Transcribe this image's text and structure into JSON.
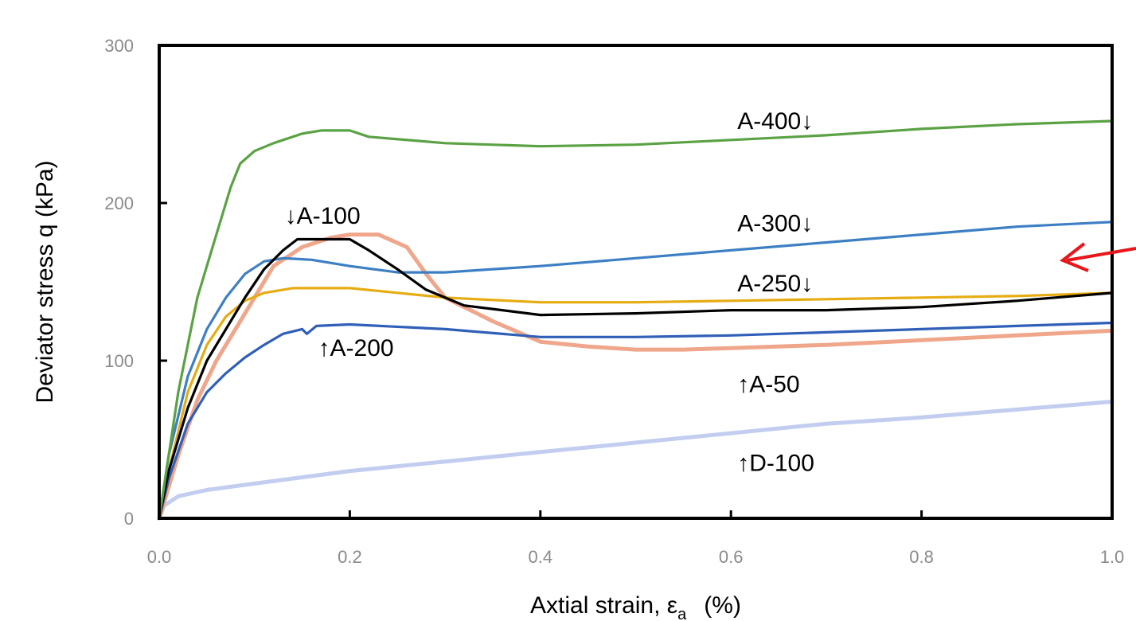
{
  "chart_data": {
    "type": "line",
    "title": "",
    "xlabel": "Axtial strain, ε",
    "xlabel_subscript": "a",
    "xlabel_unit": "(%)",
    "ylabel": "Deviator stress q (kPa)",
    "xlim": [
      0.0,
      1.0
    ],
    "ylim": [
      0,
      300
    ],
    "x_ticks": [
      "0.0",
      "0.2",
      "0.4",
      "0.6",
      "0.8",
      "1.0"
    ],
    "y_ticks": [
      "0",
      "100",
      "200",
      "300"
    ],
    "grid": false,
    "legend": "none",
    "series": [
      {
        "label": "A-400↓",
        "color": "#5aa244",
        "points": [
          [
            0,
            0
          ],
          [
            0.005,
            20
          ],
          [
            0.02,
            80
          ],
          [
            0.04,
            140
          ],
          [
            0.06,
            180
          ],
          [
            0.075,
            210
          ],
          [
            0.085,
            225
          ],
          [
            0.1,
            233
          ],
          [
            0.12,
            238
          ],
          [
            0.15,
            244
          ],
          [
            0.17,
            246
          ],
          [
            0.2,
            246
          ],
          [
            0.22,
            242
          ],
          [
            0.3,
            238
          ],
          [
            0.4,
            236
          ],
          [
            0.5,
            237
          ],
          [
            0.6,
            240
          ],
          [
            0.7,
            243
          ],
          [
            0.8,
            247
          ],
          [
            0.9,
            250
          ],
          [
            1.0,
            252
          ]
        ]
      },
      {
        "label": "↓A-100",
        "color": "#000000",
        "points": [
          [
            0,
            0
          ],
          [
            0.01,
            30
          ],
          [
            0.03,
            70
          ],
          [
            0.05,
            100
          ],
          [
            0.07,
            120
          ],
          [
            0.09,
            140
          ],
          [
            0.11,
            158
          ],
          [
            0.13,
            170
          ],
          [
            0.145,
            177
          ],
          [
            0.17,
            177
          ],
          [
            0.2,
            177
          ],
          [
            0.22,
            170
          ],
          [
            0.25,
            158
          ],
          [
            0.28,
            145
          ],
          [
            0.32,
            135
          ],
          [
            0.4,
            129
          ],
          [
            0.5,
            130
          ],
          [
            0.6,
            132
          ],
          [
            0.7,
            132
          ],
          [
            0.8,
            134
          ],
          [
            0.9,
            138
          ],
          [
            1.0,
            143
          ]
        ]
      },
      {
        "label": "A-300↓",
        "color": "#3d7fc4",
        "points": [
          [
            0,
            0
          ],
          [
            0.01,
            40
          ],
          [
            0.03,
            90
          ],
          [
            0.05,
            120
          ],
          [
            0.07,
            140
          ],
          [
            0.09,
            155
          ],
          [
            0.11,
            163
          ],
          [
            0.13,
            165
          ],
          [
            0.16,
            164
          ],
          [
            0.2,
            160
          ],
          [
            0.25,
            156
          ],
          [
            0.3,
            156
          ],
          [
            0.4,
            160
          ],
          [
            0.5,
            165
          ],
          [
            0.6,
            170
          ],
          [
            0.7,
            175
          ],
          [
            0.8,
            180
          ],
          [
            0.9,
            185
          ],
          [
            1.0,
            188
          ]
        ]
      },
      {
        "label": "A-250↓",
        "color": "#e6ac12",
        "points": [
          [
            0,
            0
          ],
          [
            0.01,
            30
          ],
          [
            0.03,
            80
          ],
          [
            0.05,
            110
          ],
          [
            0.07,
            128
          ],
          [
            0.09,
            138
          ],
          [
            0.11,
            143
          ],
          [
            0.14,
            146
          ],
          [
            0.2,
            146
          ],
          [
            0.3,
            140
          ],
          [
            0.4,
            137
          ],
          [
            0.5,
            137
          ],
          [
            0.6,
            138
          ],
          [
            0.7,
            139
          ],
          [
            0.8,
            140
          ],
          [
            0.9,
            141
          ],
          [
            1.0,
            143
          ]
        ]
      },
      {
        "label": "↑A-200",
        "color": "#2f5fb8",
        "points": [
          [
            0,
            0
          ],
          [
            0.01,
            25
          ],
          [
            0.03,
            60
          ],
          [
            0.05,
            80
          ],
          [
            0.07,
            92
          ],
          [
            0.09,
            102
          ],
          [
            0.11,
            110
          ],
          [
            0.13,
            117
          ],
          [
            0.15,
            120
          ],
          [
            0.155,
            117
          ],
          [
            0.165,
            122
          ],
          [
            0.2,
            123
          ],
          [
            0.3,
            120
          ],
          [
            0.4,
            115
          ],
          [
            0.5,
            115
          ],
          [
            0.6,
            116
          ],
          [
            0.7,
            118
          ],
          [
            0.8,
            120
          ],
          [
            0.9,
            122
          ],
          [
            1.0,
            124
          ]
        ]
      },
      {
        "label": "↑A-50",
        "color": "#efa68a",
        "points": [
          [
            0,
            0
          ],
          [
            0.02,
            40
          ],
          [
            0.04,
            75
          ],
          [
            0.06,
            100
          ],
          [
            0.08,
            120
          ],
          [
            0.1,
            140
          ],
          [
            0.12,
            160
          ],
          [
            0.15,
            172
          ],
          [
            0.18,
            178
          ],
          [
            0.2,
            180
          ],
          [
            0.23,
            180
          ],
          [
            0.26,
            172
          ],
          [
            0.28,
            155
          ],
          [
            0.3,
            140
          ],
          [
            0.35,
            125
          ],
          [
            0.4,
            112
          ],
          [
            0.45,
            109
          ],
          [
            0.5,
            107
          ],
          [
            0.55,
            107
          ],
          [
            0.6,
            108
          ],
          [
            0.7,
            110
          ],
          [
            0.8,
            113
          ],
          [
            0.9,
            116
          ],
          [
            1.0,
            119
          ]
        ]
      },
      {
        "label": "↑D-100",
        "color": "#c2cdf0",
        "points": [
          [
            0,
            0
          ],
          [
            0.005,
            8
          ],
          [
            0.02,
            14
          ],
          [
            0.05,
            18
          ],
          [
            0.1,
            22
          ],
          [
            0.2,
            30
          ],
          [
            0.3,
            36
          ],
          [
            0.4,
            42
          ],
          [
            0.5,
            48
          ],
          [
            0.6,
            54
          ],
          [
            0.7,
            60
          ],
          [
            0.8,
            64
          ],
          [
            0.9,
            69
          ],
          [
            1.0,
            74
          ]
        ]
      }
    ],
    "annotations": [
      {
        "text": "A-400↓",
        "x": 0.6,
        "y": 252
      },
      {
        "text": "↓A-100",
        "x": 0.125,
        "y": 192
      },
      {
        "text": "A-300↓",
        "x": 0.6,
        "y": 187
      },
      {
        "text": "A-250↓",
        "x": 0.6,
        "y": 149
      },
      {
        "text": "↑A-200",
        "x": 0.16,
        "y": 108
      },
      {
        "text": "↑A-50",
        "x": 0.6,
        "y": 85
      },
      {
        "text": "↑D-100",
        "x": 0.6,
        "y": 35
      }
    ],
    "arrow": {
      "color": "#e8161b",
      "description": "red arrow pointing left into the plot"
    }
  }
}
